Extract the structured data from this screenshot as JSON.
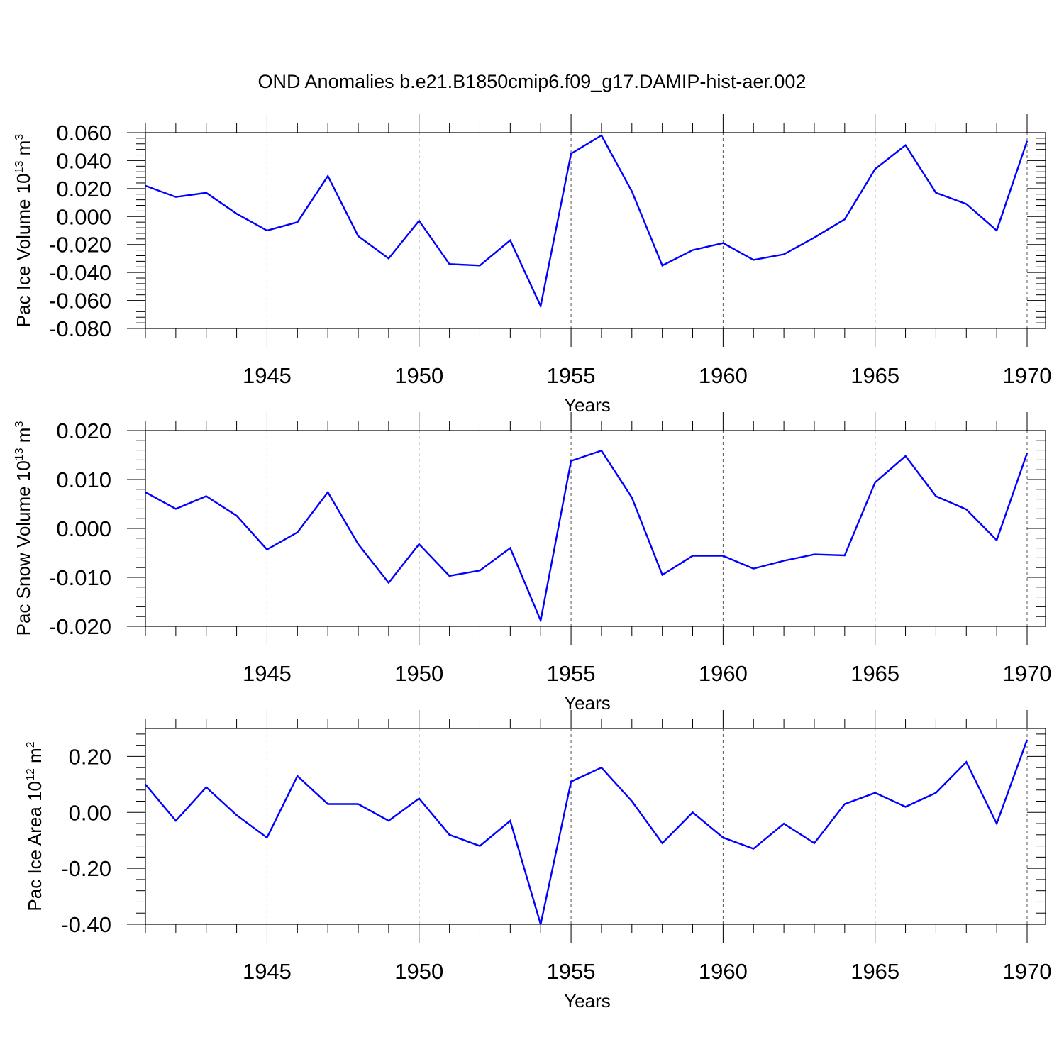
{
  "title": "OND Anomalies b.e21.B1850cmip6.f09_g17.DAMIP-hist-aer.002",
  "line_color": "#0000ff",
  "chart_data": [
    {
      "type": "line",
      "ylabel": {
        "text": "Pac Ice Volume 10",
        "exp": "13",
        "unit": " m",
        "unit_exp": "3"
      },
      "xlabel": "Years",
      "xlim": [
        1941,
        1970
      ],
      "ylim": [
        -0.08,
        0.06
      ],
      "yticks": [
        "0.060",
        "0.040",
        "0.020",
        "0.000",
        "-0.020",
        "-0.040",
        "-0.060",
        "-0.080"
      ],
      "ytick_values": [
        0.06,
        0.04,
        0.02,
        0.0,
        -0.02,
        -0.04,
        -0.06,
        -0.08
      ],
      "xticks": [
        "1945",
        "1950",
        "1955",
        "1960",
        "1965",
        "1970"
      ],
      "xtick_values": [
        1945,
        1950,
        1955,
        1960,
        1965,
        1970
      ],
      "grid": "dashed vertical at major x ticks",
      "series": [
        {
          "x": [
            1941,
            1942,
            1943,
            1944,
            1945,
            1946,
            1947,
            1948,
            1949,
            1950,
            1951,
            1952,
            1953,
            1954,
            1955,
            1956,
            1957,
            1958,
            1959,
            1960,
            1961,
            1962,
            1963,
            1964,
            1965,
            1966,
            1967,
            1968,
            1969,
            1970
          ],
          "values": [
            0.022,
            0.014,
            0.017,
            0.002,
            -0.01,
            -0.004,
            0.029,
            -0.014,
            -0.03,
            -0.003,
            -0.034,
            -0.035,
            -0.017,
            -0.064,
            0.045,
            0.058,
            0.018,
            -0.035,
            -0.024,
            -0.019,
            -0.031,
            -0.027,
            -0.015,
            -0.002,
            0.034,
            0.051,
            0.017,
            0.009,
            -0.01,
            0.054
          ]
        }
      ]
    },
    {
      "type": "line",
      "ylabel": {
        "text": "Pac Snow Volume 10",
        "exp": "13",
        "unit": " m",
        "unit_exp": "3"
      },
      "xlabel": "Years",
      "xlim": [
        1941,
        1970
      ],
      "ylim": [
        -0.02,
        0.02
      ],
      "yticks": [
        "0.020",
        "0.010",
        "0.000",
        "-0.010",
        "-0.020"
      ],
      "ytick_values": [
        0.02,
        0.01,
        0.0,
        -0.01,
        -0.02
      ],
      "xticks": [
        "1945",
        "1950",
        "1955",
        "1960",
        "1965",
        "1970"
      ],
      "xtick_values": [
        1945,
        1950,
        1955,
        1960,
        1965,
        1970
      ],
      "grid": "dashed vertical at major x ticks",
      "series": [
        {
          "x": [
            1941,
            1942,
            1943,
            1944,
            1945,
            1946,
            1947,
            1948,
            1949,
            1950,
            1951,
            1952,
            1953,
            1954,
            1955,
            1956,
            1957,
            1958,
            1959,
            1960,
            1961,
            1962,
            1963,
            1964,
            1965,
            1966,
            1967,
            1968,
            1969,
            1970
          ],
          "values": [
            0.0074,
            0.004,
            0.0066,
            0.0026,
            -0.0043,
            -0.0008,
            0.0074,
            -0.0032,
            -0.0111,
            -0.0032,
            -0.0097,
            -0.0086,
            -0.004,
            -0.0188,
            0.0138,
            0.0159,
            0.0063,
            -0.0095,
            -0.0056,
            -0.0056,
            -0.0082,
            -0.0066,
            -0.0053,
            -0.0055,
            0.0094,
            0.0148,
            0.0066,
            0.0039,
            -0.0024,
            0.0154
          ]
        }
      ]
    },
    {
      "type": "line",
      "ylabel": {
        "text": "Pac Ice Area 10",
        "exp": "12",
        "unit": " m",
        "unit_exp": "2"
      },
      "xlabel": "Years",
      "xlim": [
        1941,
        1970
      ],
      "ylim": [
        -0.4,
        0.3
      ],
      "yticks": [
        "0.20",
        "0.00",
        "-0.20",
        "-0.40"
      ],
      "ytick_values": [
        0.2,
        0.0,
        -0.2,
        -0.4
      ],
      "xticks": [
        "1945",
        "1950",
        "1955",
        "1960",
        "1965",
        "1970"
      ],
      "xtick_values": [
        1945,
        1950,
        1955,
        1960,
        1965,
        1970
      ],
      "grid": "dashed vertical at major x ticks",
      "series": [
        {
          "x": [
            1941,
            1942,
            1943,
            1944,
            1945,
            1946,
            1947,
            1948,
            1949,
            1950,
            1951,
            1952,
            1953,
            1954,
            1955,
            1956,
            1957,
            1958,
            1959,
            1960,
            1961,
            1962,
            1963,
            1964,
            1965,
            1966,
            1967,
            1968,
            1969,
            1970
          ],
          "values": [
            0.1,
            -0.03,
            0.09,
            -0.01,
            -0.09,
            0.13,
            0.03,
            0.03,
            -0.03,
            0.05,
            -0.08,
            -0.12,
            -0.03,
            -0.4,
            0.11,
            0.16,
            0.04,
            -0.11,
            0.0,
            -0.09,
            -0.13,
            -0.04,
            -0.11,
            0.03,
            0.07,
            0.02,
            0.07,
            0.18,
            -0.04,
            0.26
          ]
        }
      ]
    }
  ]
}
